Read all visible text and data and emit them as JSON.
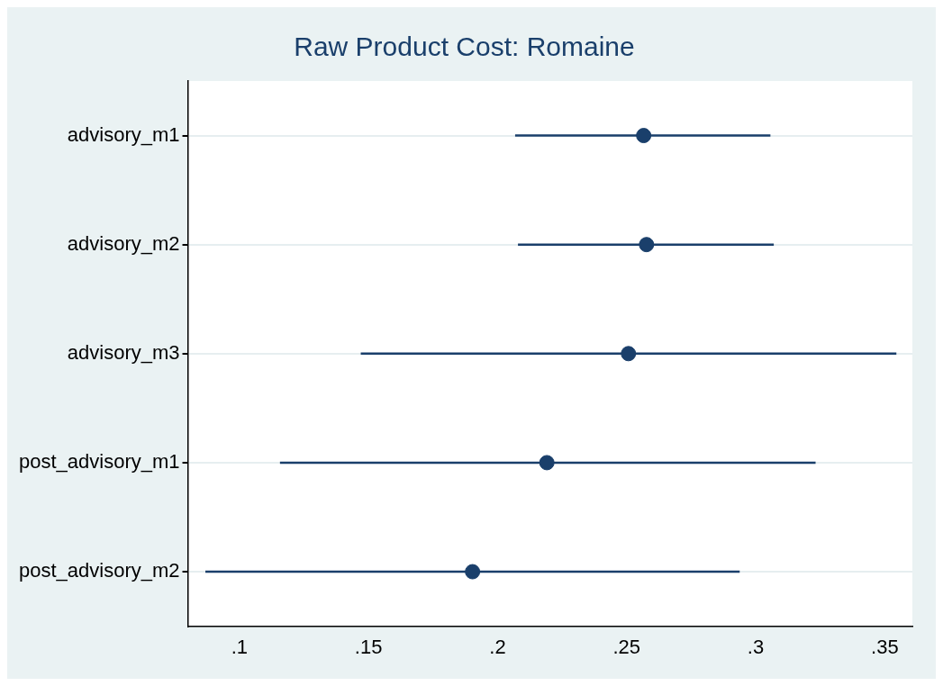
{
  "chart_data": {
    "type": "scatter",
    "orientation": "horizontal",
    "title": "Raw Product Cost: Romaine",
    "categories": [
      "advisory_m1",
      "advisory_m2",
      "advisory_m3",
      "post_advisory_m1",
      "post_advisory_m2"
    ],
    "values": [
      0.2566,
      0.2577,
      0.2507,
      0.2191,
      0.1903
    ],
    "errors": [
      [
        0.2068,
        0.3057
      ],
      [
        0.2079,
        0.307
      ],
      [
        0.147,
        0.3545
      ],
      [
        0.1157,
        0.3232
      ],
      [
        0.0868,
        0.2938
      ]
    ],
    "color": "#1a3f6b",
    "marker": "circle",
    "xlim": [
      0.08,
      0.3607
    ],
    "xticks": [
      {
        "value": 0.1,
        "label": ".1"
      },
      {
        "value": 0.15,
        "label": ".15"
      },
      {
        "value": 0.2,
        "label": ".2"
      },
      {
        "value": 0.25,
        "label": ".25"
      },
      {
        "value": 0.3,
        "label": ".3"
      },
      {
        "value": 0.35,
        "label": ".35"
      }
    ],
    "grid": "y",
    "legend": false
  }
}
